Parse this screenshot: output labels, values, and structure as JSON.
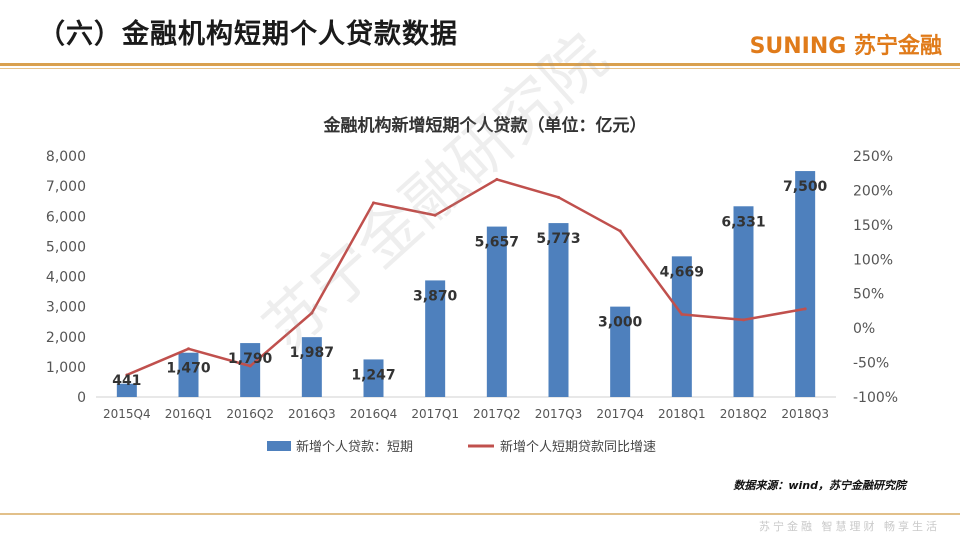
{
  "header": {
    "title": "（六）金融机构短期个人贷款数据",
    "brand": "SUNING 苏宁金融"
  },
  "footer": {
    "source": "数据来源：wind，苏宁金融研究院",
    "slogan": "苏宁金融 智慧理财 畅享生活"
  },
  "watermark": "苏宁金融研究院",
  "colors": {
    "bar": "#4e80bd",
    "line": "#c0504d",
    "accent": "#e07b1a",
    "rule": "#d9a04e"
  },
  "chart_data": {
    "type": "bar",
    "title": "金融机构新增短期个人贷款（单位：亿元）",
    "categories": [
      "2015Q4",
      "2016Q1",
      "2016Q2",
      "2016Q3",
      "2016Q4",
      "2017Q1",
      "2017Q2",
      "2017Q3",
      "2017Q4",
      "2018Q1",
      "2018Q2",
      "2018Q3"
    ],
    "series": [
      {
        "name": "新增个人贷款：短期",
        "type": "bar",
        "axis": "left",
        "values": [
          441,
          1470,
          1790,
          1987,
          1247,
          3870,
          5657,
          5773,
          3000,
          4669,
          6331,
          7500
        ],
        "labels": [
          "441",
          "1,470",
          "1,790",
          "1,987",
          "1,247",
          "3,870",
          "5,657",
          "5,773",
          "3,000",
          "4,669",
          "6,331",
          "7,500"
        ]
      },
      {
        "name": "新增个人短期贷款同比增速",
        "type": "line",
        "axis": "right",
        "values": [
          -68,
          -30,
          -55,
          22,
          182,
          164,
          216,
          190,
          141,
          20,
          12,
          28
        ]
      }
    ],
    "y_left": {
      "min": 0,
      "max": 8000,
      "step": 1000,
      "ticks": [
        "0",
        "1,000",
        "2,000",
        "3,000",
        "4,000",
        "5,000",
        "6,000",
        "7,000",
        "8,000"
      ]
    },
    "y_right": {
      "min": -100,
      "max": 250,
      "step": 50,
      "ticks": [
        "-100%",
        "-50%",
        "0%",
        "50%",
        "100%",
        "150%",
        "200%",
        "250%"
      ]
    },
    "legend_position": "bottom",
    "grid": false
  }
}
